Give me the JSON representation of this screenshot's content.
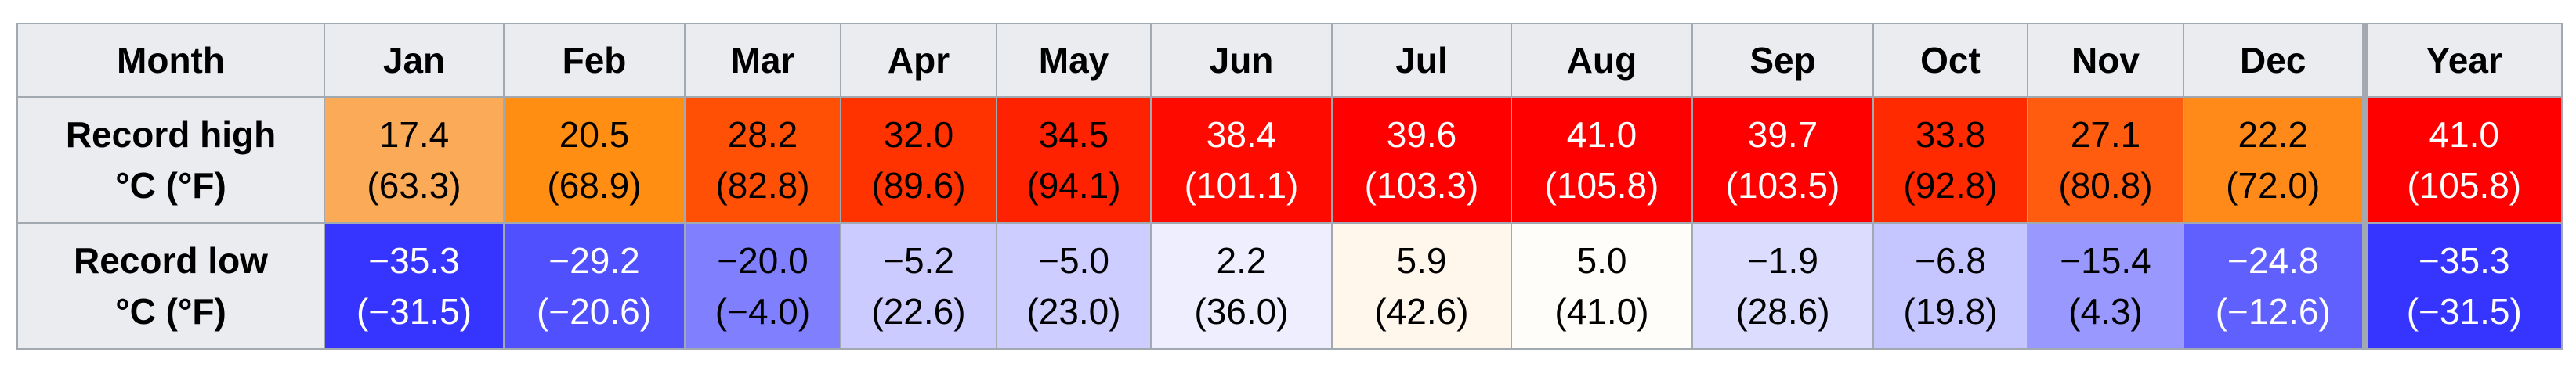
{
  "table": {
    "header": [
      "Month",
      "Jan",
      "Feb",
      "Mar",
      "Apr",
      "May",
      "Jun",
      "Jul",
      "Aug",
      "Sep",
      "Oct",
      "Nov",
      "Dec",
      "Year"
    ],
    "rows": [
      {
        "label": [
          "Record high",
          "°C (°F)"
        ],
        "cells": [
          {
            "c": "17.4",
            "f": "(63.3)",
            "bg": "#fbaa58",
            "fg": "#000000"
          },
          {
            "c": "20.5",
            "f": "(68.9)",
            "bg": "#ff8e12",
            "fg": "#000000"
          },
          {
            "c": "28.2",
            "f": "(82.8)",
            "bg": "#ff5005",
            "fg": "#000000"
          },
          {
            "c": "32.0",
            "f": "(89.6)",
            "bg": "#ff3300",
            "fg": "#000000"
          },
          {
            "c": "34.5",
            "f": "(94.1)",
            "bg": "#ff2200",
            "fg": "#000000"
          },
          {
            "c": "38.4",
            "f": "(101.1)",
            "bg": "#ff0a00",
            "fg": "#ffffff"
          },
          {
            "c": "39.6",
            "f": "(103.3)",
            "bg": "#ff0000",
            "fg": "#ffffff"
          },
          {
            "c": "41.0",
            "f": "(105.8)",
            "bg": "#ff0000",
            "fg": "#ffffff"
          },
          {
            "c": "39.7",
            "f": "(103.5)",
            "bg": "#ff0000",
            "fg": "#ffffff"
          },
          {
            "c": "33.8",
            "f": "(92.8)",
            "bg": "#ff2a00",
            "fg": "#000000"
          },
          {
            "c": "27.1",
            "f": "(80.8)",
            "bg": "#ff5c0f",
            "fg": "#000000"
          },
          {
            "c": "22.2",
            "f": "(72.0)",
            "bg": "#ff8a1a",
            "fg": "#000000"
          },
          {
            "c": "41.0",
            "f": "(105.8)",
            "bg": "#ff0000",
            "fg": "#ffffff"
          }
        ]
      },
      {
        "label": [
          "Record low",
          "°C (°F)"
        ],
        "cells": [
          {
            "c": "−35.3",
            "f": "(−31.5)",
            "bg": "#3535ff",
            "fg": "#ffffff"
          },
          {
            "c": "−29.2",
            "f": "(−20.6)",
            "bg": "#5050ff",
            "fg": "#ffffff"
          },
          {
            "c": "−20.0",
            "f": "(−4.0)",
            "bg": "#8080ff",
            "fg": "#000000"
          },
          {
            "c": "−5.2",
            "f": "(22.6)",
            "bg": "#cbcbff",
            "fg": "#000000"
          },
          {
            "c": "−5.0",
            "f": "(23.0)",
            "bg": "#cdcdff",
            "fg": "#000000"
          },
          {
            "c": "2.2",
            "f": "(36.0)",
            "bg": "#eeeeff",
            "fg": "#000000"
          },
          {
            "c": "5.9",
            "f": "(42.6)",
            "bg": "#fff6ec",
            "fg": "#000000"
          },
          {
            "c": "5.0",
            "f": "(41.0)",
            "bg": "#fffdfa",
            "fg": "#000000"
          },
          {
            "c": "−1.9",
            "f": "(28.6)",
            "bg": "#dcdcff",
            "fg": "#000000"
          },
          {
            "c": "−6.8",
            "f": "(19.8)",
            "bg": "#c5c5ff",
            "fg": "#000000"
          },
          {
            "c": "−15.4",
            "f": "(4.3)",
            "bg": "#9898ff",
            "fg": "#000000"
          },
          {
            "c": "−24.8",
            "f": "(−12.6)",
            "bg": "#6060ff",
            "fg": "#ffffff"
          },
          {
            "c": "−35.3",
            "f": "(−31.5)",
            "bg": "#3535ff",
            "fg": "#ffffff"
          }
        ]
      }
    ]
  }
}
